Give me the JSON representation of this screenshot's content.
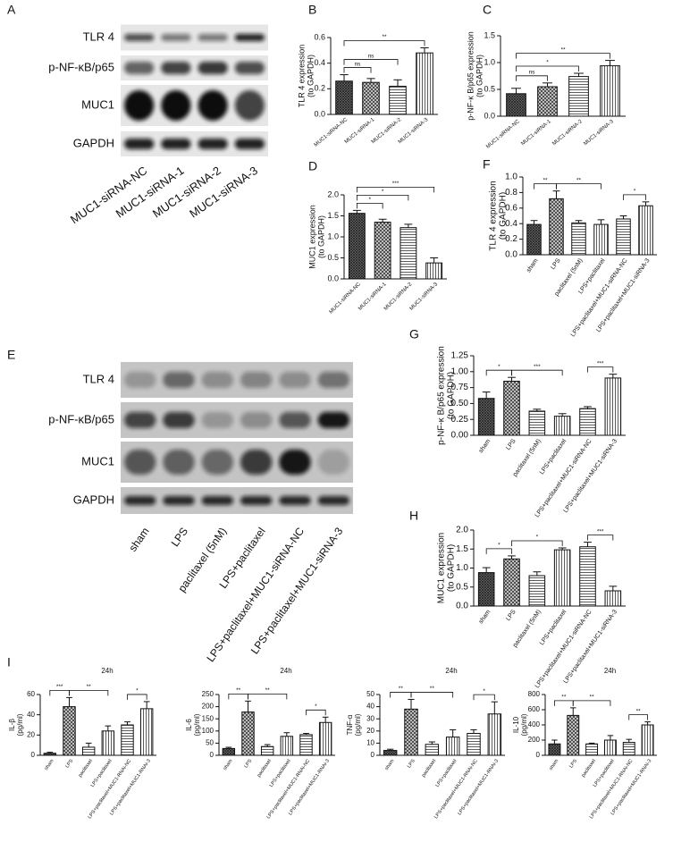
{
  "blots": [
    {
      "panel": "A",
      "rows": [
        "TLR 4",
        "p-NF-κB/p65",
        "MUC1",
        "GAPDH"
      ],
      "lanes": [
        "MUC1-siRNA-NC",
        "MUC1-siRNA-1",
        "MUC1-siRNA-2",
        "MUC1-siRNA-3"
      ]
    },
    {
      "panel": "E",
      "rows": [
        "TLR 4",
        "p-NF-κB/p65",
        "MUC1",
        "GAPDH"
      ],
      "lanes": [
        "sham",
        "LPS",
        "paclitaxel (5nM)",
        "LPS+paclitaxel",
        "LPS+paclitaxel+MUC1-siRNA-NC",
        "LPS+paclitaxel+MUC1-siRNA-3"
      ]
    }
  ],
  "chart_data": [
    {
      "type": "bar",
      "panel": "B",
      "ylabel": [
        "TLR 4 expression",
        "(to GAPDH)"
      ],
      "categories": [
        "MUC1-siRNA-NC",
        "MUC1-siRNA-1",
        "MUC1-siRNA-2",
        "MUC1-siRNA-3"
      ],
      "values": [
        0.26,
        0.25,
        0.22,
        0.48
      ],
      "errors": [
        0.05,
        0.03,
        0.05,
        0.04
      ],
      "color": "#111111",
      "ylim": [
        0,
        0.6
      ],
      "yticks": [
        {
          "value": 0,
          "label": "0.0"
        },
        0.2,
        0.4,
        0.6
      ],
      "comparisons": [
        {
          "from": 0,
          "to": 1,
          "label": "ns"
        },
        {
          "from": 0,
          "to": 2,
          "label": "ns"
        },
        {
          "from": 0,
          "to": 3,
          "label": "**"
        }
      ]
    },
    {
      "type": "bar",
      "panel": "C",
      "ylabel": [
        "p-NF-κ B/p65 expression",
        "(to GAPDH)"
      ],
      "categories": [
        "MUC1-siRNA-NC",
        "MUC1-siRNA-1",
        "MUC1-siRNA-2",
        "MUC1-siRNA-3"
      ],
      "values": [
        0.42,
        0.55,
        0.74,
        0.94
      ],
      "errors": [
        0.1,
        0.07,
        0.06,
        0.1
      ],
      "color": "#111111",
      "ylim": [
        0,
        1.5
      ],
      "yticks": [
        {
          "value": 0,
          "label": "0.0"
        },
        0.5,
        {
          "value": 1,
          "label": "1.0"
        },
        1.5
      ],
      "comparisons": [
        {
          "from": 0,
          "to": 1,
          "label": "ns"
        },
        {
          "from": 0,
          "to": 2,
          "label": "*"
        },
        {
          "from": 0,
          "to": 3,
          "label": "**"
        }
      ]
    },
    {
      "type": "bar",
      "panel": "D",
      "ylabel": [
        "MUC1 expression",
        "(to GAPDH)"
      ],
      "categories": [
        "MUC1-siRNA-NC",
        "MUC1-siRNA-1",
        "MUC1-siRNA-2",
        "MUC1-siRNA-3"
      ],
      "values": [
        1.56,
        1.35,
        1.22,
        0.38
      ],
      "errors": [
        0.07,
        0.07,
        0.08,
        0.12
      ],
      "color": "#111111",
      "ylim": [
        0,
        2
      ],
      "yticks": [
        {
          "value": 0,
          "label": "0.0"
        },
        0.5,
        {
          "value": 1,
          "label": "1.0"
        },
        1.5,
        {
          "value": 2,
          "label": "2.0"
        }
      ],
      "comparisons": [
        {
          "from": 0,
          "to": 1,
          "label": "*"
        },
        {
          "from": 0,
          "to": 2,
          "label": "*"
        },
        {
          "from": 0,
          "to": 3,
          "label": "***"
        }
      ]
    },
    {
      "type": "bar",
      "panel": "F",
      "ylabel": [
        "TLR 4 expression",
        "(to GAPDH)"
      ],
      "categories": [
        "sham",
        "LPS",
        "paclitaxel (5nM)",
        "LPS+paclitaxel",
        "LPS+paclitaxel+MUC1-siRNA-NC",
        "LPS+paclitaxel+MUC1-siRNA-3"
      ],
      "values": [
        0.39,
        0.72,
        0.41,
        0.39,
        0.46,
        0.63
      ],
      "errors": [
        0.05,
        0.1,
        0.03,
        0.06,
        0.04,
        0.05
      ],
      "color": "#111111",
      "ylim": [
        0,
        1
      ],
      "yticks": [
        {
          "value": 0,
          "label": "0.0"
        },
        0.2,
        0.4,
        0.6,
        0.8,
        {
          "value": 1,
          "label": "1.0"
        }
      ],
      "comparisons": [
        {
          "from": 0,
          "to": 1,
          "label": "**"
        },
        {
          "from": 1,
          "to": 3,
          "label": "**"
        },
        {
          "from": 4,
          "to": 5,
          "label": "*"
        }
      ]
    },
    {
      "type": "bar",
      "panel": "G",
      "ylabel": [
        "p-NF-κ B/p65 expression",
        "(to GAPDH)"
      ],
      "categories": [
        "sham",
        "LPS",
        "paclitaxel (5nM)",
        "LPS+paclitaxel",
        "LPS+paclitaxel+MUC1-siRNA-NC",
        "LPS+paclitaxel+MUC1-siRNA-3"
      ],
      "values": [
        0.58,
        0.85,
        0.38,
        0.3,
        0.42,
        0.9
      ],
      "errors": [
        0.1,
        0.06,
        0.03,
        0.04,
        0.03,
        0.06
      ],
      "color": "#111111",
      "ylim": [
        0,
        1.25
      ],
      "yticks": [
        {
          "value": 0,
          "label": "0.00"
        },
        0.25,
        {
          "value": 0.5,
          "label": "0.50"
        },
        0.75,
        {
          "value": 1,
          "label": "1.00"
        },
        1.25
      ],
      "comparisons": [
        {
          "from": 0,
          "to": 1,
          "label": "*"
        },
        {
          "from": 1,
          "to": 3,
          "label": "***"
        },
        {
          "from": 4,
          "to": 5,
          "label": "***"
        }
      ]
    },
    {
      "type": "bar",
      "panel": "H",
      "ylabel": [
        "MUC1 expression",
        "(to GAPDH)"
      ],
      "categories": [
        "sham",
        "LPS",
        "paclitaxel (5nM)",
        "LPS+paclitaxel",
        "LPS+paclitaxel+MUC1-siRNA-NC",
        "LPS+paclitaxel+MUC1-siRNA-3"
      ],
      "values": [
        0.88,
        1.24,
        0.8,
        1.48,
        1.56,
        0.4
      ],
      "errors": [
        0.13,
        0.08,
        0.1,
        0.05,
        0.12,
        0.12
      ],
      "color": "#111111",
      "ylim": [
        0,
        2
      ],
      "yticks": [
        {
          "value": 0,
          "label": "0.0"
        },
        0.5,
        {
          "value": 1,
          "label": "1.0"
        },
        1.5,
        {
          "value": 2,
          "label": "2.0"
        }
      ],
      "comparisons": [
        {
          "from": 0,
          "to": 1,
          "label": "*"
        },
        {
          "from": 1,
          "to": 3,
          "label": "*"
        },
        {
          "from": 4,
          "to": 5,
          "label": "***"
        }
      ]
    },
    {
      "type": "bar",
      "panel": "I",
      "title": "24h",
      "ylabel": [
        "IL-β",
        "(pg/ml)"
      ],
      "categories": [
        "sham",
        "LPS",
        "paclitaxel",
        "LPS+paclitaxel",
        "LPS+paclitaxel+MUC1-RNAi-NC",
        "LPS+paclitaxel+MUC1-RNAi-3"
      ],
      "values": [
        2,
        48,
        8,
        24,
        30,
        46
      ],
      "errors": [
        1,
        9,
        4,
        5,
        3,
        7
      ],
      "color": "#111111",
      "ylim": [
        0,
        60
      ],
      "yticks": [
        0,
        20,
        40,
        60
      ],
      "comparisons": [
        {
          "from": 0,
          "to": 1,
          "label": "***"
        },
        {
          "from": 1,
          "to": 3,
          "label": "**"
        },
        {
          "from": 4,
          "to": 5,
          "label": "*"
        }
      ]
    },
    {
      "type": "bar",
      "title": "24h",
      "ylabel": [
        "IL-6",
        "(pg/ml)"
      ],
      "categories": [
        "sham",
        "LPS",
        "paclitaxel",
        "LPS+paclitaxel",
        "LPS+paclitaxel+MUC1-RNAi-NC",
        "LPS+paclitaxel+MUC1-RNAi-3"
      ],
      "values": [
        28,
        178,
        36,
        78,
        85,
        135
      ],
      "errors": [
        5,
        45,
        8,
        15,
        5,
        22
      ],
      "color": "#111111",
      "ylim": [
        0,
        250
      ],
      "yticks": [
        0,
        50,
        100,
        150,
        200,
        250
      ],
      "comparisons": [
        {
          "from": 0,
          "to": 1,
          "label": "**"
        },
        {
          "from": 1,
          "to": 3,
          "label": "**"
        },
        {
          "from": 4,
          "to": 5,
          "label": "*"
        }
      ]
    },
    {
      "type": "bar",
      "title": "24h",
      "ylabel": [
        "TNF-α",
        "(pg/ml)"
      ],
      "categories": [
        "sham",
        "LPS",
        "paclitaxel",
        "LPS+paclitaxel",
        "LPS+paclitaxel+MUC1-RNAi-NC",
        "LPS+paclitaxel+MUC1-RNAi-3"
      ],
      "values": [
        4,
        38,
        9,
        15,
        18,
        34
      ],
      "errors": [
        1,
        8,
        2,
        6,
        3,
        10
      ],
      "color": "#111111",
      "ylim": [
        0,
        50
      ],
      "yticks": [
        0,
        10,
        20,
        30,
        40,
        50
      ],
      "comparisons": [
        {
          "from": 0,
          "to": 1,
          "label": "**"
        },
        {
          "from": 1,
          "to": 3,
          "label": "**"
        },
        {
          "from": 4,
          "to": 5,
          "label": "*"
        }
      ]
    },
    {
      "type": "bar",
      "title": "24h",
      "ylabel": [
        "IL-10",
        "(pg/ml)"
      ],
      "categories": [
        "sham",
        "LPS",
        "paclitaxel",
        "LPS+paclitaxel",
        "LPS+paclitaxel+MUC1-RNAi-NC",
        "LPS+paclitaxel+MUC1-RNAi-3"
      ],
      "values": [
        150,
        525,
        150,
        200,
        170,
        400
      ],
      "errors": [
        50,
        100,
        10,
        60,
        40,
        40
      ],
      "color": "#111111",
      "ylim": [
        0,
        800
      ],
      "yticks": [
        0,
        200,
        400,
        600,
        800
      ],
      "comparisons": [
        {
          "from": 0,
          "to": 1,
          "label": "**"
        },
        {
          "from": 1,
          "to": 3,
          "label": "**"
        },
        {
          "from": 4,
          "to": 5,
          "label": "**"
        }
      ]
    }
  ]
}
